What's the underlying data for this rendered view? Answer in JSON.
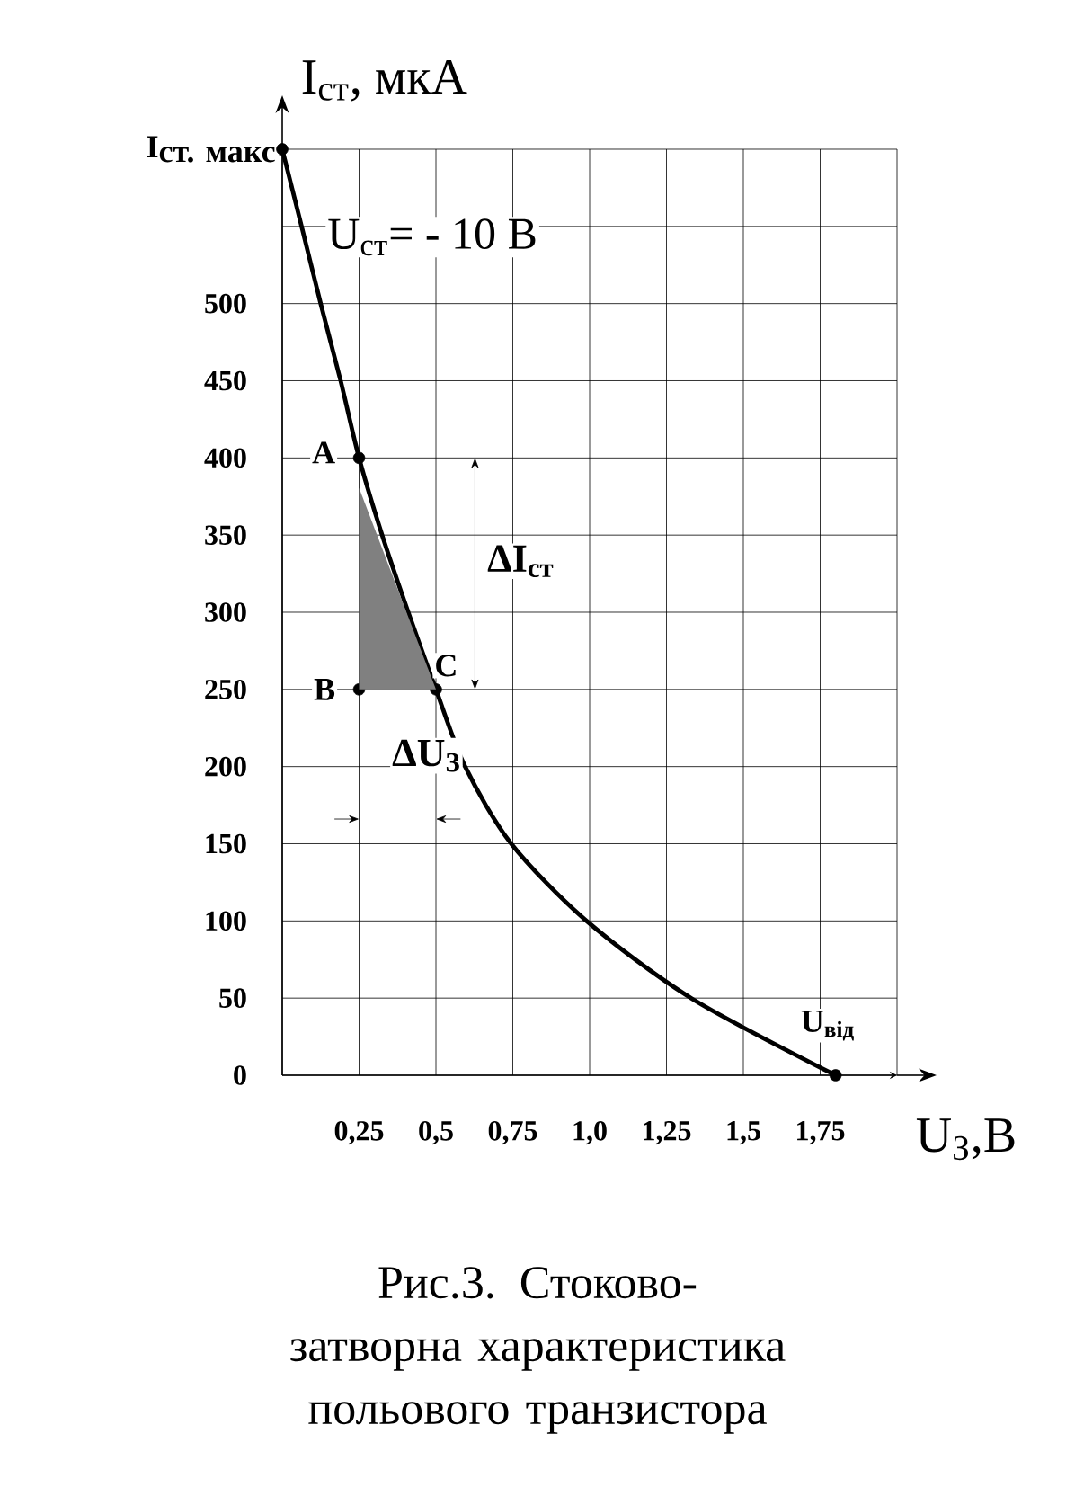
{
  "chart_data": {
    "type": "line",
    "title": "Рис.3. Стоково-затворна характеристика польового транзистора",
    "xlabel": "U$_{З}$,В",
    "ylabel": "I$_{ст}$, мкА",
    "xlim": [
      0,
      2
    ],
    "ylim": [
      0,
      600
    ],
    "xticks": [
      {
        "value": 0,
        "label": null
      },
      {
        "value": 0.25,
        "label": "0,25"
      },
      {
        "value": 0.5,
        "label": "0,5"
      },
      {
        "value": 0.75,
        "label": "0,75"
      },
      {
        "value": 1,
        "label": "1,0"
      },
      {
        "value": 1.25,
        "label": "1,25"
      },
      {
        "value": 1.5,
        "label": "1,5"
      },
      {
        "value": 1.75,
        "label": "1,75"
      },
      {
        "value": 2,
        "label": null
      }
    ],
    "yticks": [
      0,
      50,
      100,
      150,
      200,
      250,
      300,
      350,
      400,
      450,
      500,
      {
        "value": 550,
        "label": null
      },
      {
        "value": 600,
        "label": null
      }
    ],
    "grid": true,
    "series": [
      {
        "color": "#000000",
        "marker": "none",
        "x": [
          0,
          0.063,
          0.125,
          0.19,
          0.25,
          0.325,
          0.41,
          0.5,
          0.595,
          0.745,
          0.99,
          1.33,
          1.8
        ],
        "values": [
          600,
          550,
          500,
          450,
          400,
          350,
          300,
          250,
          200,
          150,
          100,
          50,
          0
        ]
      },
      {
        "type": "scatter",
        "color": "#000000",
        "marker": "circle",
        "x": [
          0,
          0.25,
          0.25,
          0.5,
          1.8
        ],
        "values": [
          600,
          400,
          250,
          250,
          0
        ]
      }
    ],
    "annotations": [
      "U$_{ст}$= - 10 В",
      {
        "text": "\\mathbf{I}_{\\mbox{\\bfseries ст. макс}}",
        "x": 0,
        "y": 600
      },
      {
        "text": "A",
        "x": 0.25,
        "y": 400
      },
      {
        "text": "B",
        "x": 0.25,
        "y": 250
      },
      {
        "text": "C",
        "x": 0.5,
        "y": 250
      },
      {
        "text": "U$_{від}$",
        "x": 1.8,
        "y": 0
      },
      "ΔI$_{ст}$",
      "ΔU$_{З}$"
    ]
  }
}
